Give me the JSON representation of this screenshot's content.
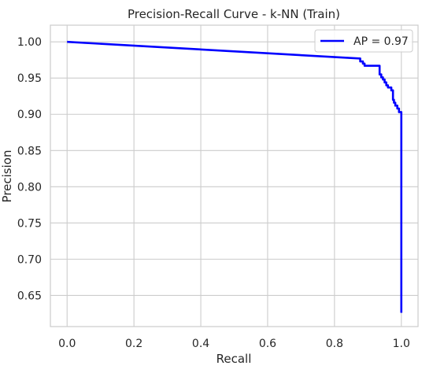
{
  "chart_data": {
    "type": "line",
    "title": "Precision-Recall Curve - k-NN (Train)",
    "xlabel": "Recall",
    "ylabel": "Precision",
    "xlim": [
      -0.05,
      1.05
    ],
    "ylim": [
      0.607,
      1.023
    ],
    "xticks": [
      0.0,
      0.2,
      0.4,
      0.6,
      0.8,
      1.0
    ],
    "xtick_labels": [
      "0.0",
      "0.2",
      "0.4",
      "0.6",
      "0.8",
      "1.0"
    ],
    "yticks": [
      0.65,
      0.7,
      0.75,
      0.8,
      0.85,
      0.9,
      0.95,
      1.0
    ],
    "ytick_labels": [
      "0.65",
      "0.70",
      "0.75",
      "0.80",
      "0.85",
      "0.90",
      "0.95",
      "1.00"
    ],
    "grid": true,
    "legend_position": "top-right",
    "series": [
      {
        "name": "AP = 0.97",
        "color": "#0000ff",
        "x": [
          0.0,
          0.875,
          0.877,
          0.877,
          0.885,
          0.885,
          0.89,
          0.89,
          0.895,
          0.895,
          0.935,
          0.935,
          0.94,
          0.94,
          0.945,
          0.945,
          0.95,
          0.95,
          0.955,
          0.955,
          0.96,
          0.96,
          0.97,
          0.97,
          0.975,
          0.975,
          0.978,
          0.978,
          0.982,
          0.982,
          0.988,
          0.988,
          0.993,
          0.993,
          1.0,
          1.0
        ],
        "y": [
          1.0,
          0.977,
          0.977,
          0.973,
          0.973,
          0.97,
          0.97,
          0.967,
          0.967,
          0.967,
          0.967,
          0.955,
          0.955,
          0.951,
          0.951,
          0.948,
          0.948,
          0.944,
          0.944,
          0.94,
          0.94,
          0.937,
          0.937,
          0.933,
          0.933,
          0.92,
          0.92,
          0.916,
          0.916,
          0.912,
          0.912,
          0.908,
          0.908,
          0.903,
          0.903,
          0.626
        ]
      }
    ]
  }
}
